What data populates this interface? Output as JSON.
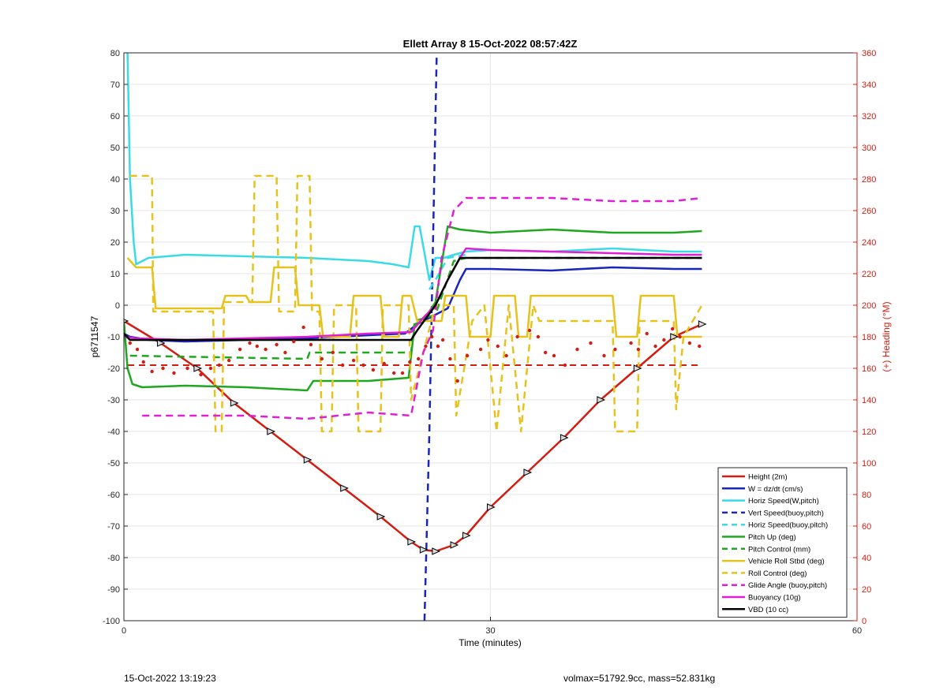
{
  "chart_data": {
    "type": "line",
    "title": "Ellett Array 8 15-Oct-2022 08:57:42Z",
    "xlabel": "Time (minutes)",
    "ylabel": "p6711547",
    "y2label": "(+) Heading (°M)",
    "xlim": [
      0,
      60
    ],
    "ylim": [
      -100,
      80
    ],
    "y2lim": [
      0,
      360
    ],
    "xticks": [
      0,
      30,
      60
    ],
    "yticks": [
      -100,
      -90,
      -80,
      -70,
      -60,
      -50,
      -40,
      -30,
      -20,
      -10,
      0,
      10,
      20,
      30,
      40,
      50,
      60,
      70,
      80
    ],
    "y2ticks": [
      0,
      20,
      40,
      60,
      80,
      100,
      120,
      140,
      160,
      180,
      200,
      220,
      240,
      260,
      280,
      300,
      320,
      340,
      360
    ],
    "grid": true,
    "legend_position": "bottom-right",
    "series": [
      {
        "name": "Height (2m)",
        "color": "#d41c10",
        "style": "solid",
        "marker": "triangle",
        "x": [
          0,
          3,
          6,
          9,
          12,
          15,
          18,
          21,
          23.5,
          24.5,
          25.5,
          27,
          28,
          30,
          33,
          36,
          39,
          42,
          45,
          47.3
        ],
        "y": [
          -5,
          -12,
          -20,
          -31,
          -40,
          -49,
          -58,
          -67,
          -75,
          -77.5,
          -78,
          -76,
          -73,
          -64,
          -53,
          -42,
          -30,
          -20,
          -10,
          -6
        ]
      },
      {
        "name": "W = dz/dt (cm/s)",
        "color": "#1a26b8",
        "style": "solid",
        "x": [
          0,
          0.5,
          2,
          5,
          10,
          15,
          20,
          23,
          24,
          24.5,
          25.5,
          26.5,
          27.5,
          28,
          30,
          35,
          40,
          45,
          47.3
        ],
        "y": [
          -9,
          -10,
          -11,
          -11.5,
          -11,
          -10.5,
          -9.5,
          -9,
          -6,
          -5,
          -3,
          -1,
          8,
          11.5,
          11.5,
          11,
          12,
          11.5,
          11.5
        ]
      },
      {
        "name": "Horiz Speed(W,pitch)",
        "color": "#38dbe6",
        "style": "solid",
        "x": [
          0.3,
          0.5,
          0.8,
          1,
          2,
          5,
          10,
          15,
          20,
          22,
          23.3,
          23.8,
          24.2,
          25,
          25.5,
          26.2,
          27,
          28,
          30,
          35,
          40,
          45,
          47.3
        ],
        "y": [
          80,
          40,
          20,
          13,
          15,
          16,
          15.5,
          15,
          14,
          13,
          12,
          25,
          25,
          8,
          15,
          15,
          16,
          17,
          17.5,
          17,
          18,
          17,
          17
        ]
      },
      {
        "name": "Vert Speed(buoy,pitch)",
        "color": "#1a26b8",
        "style": "dashed",
        "x": [
          24.6,
          25.0,
          25.3,
          25.6
        ],
        "y": [
          -100,
          -40,
          20,
          80
        ]
      },
      {
        "name": "Horiz Speed(buoy,pitch)",
        "color": "#38dbe6",
        "style": "dashed",
        "x": [
          25.0,
          25.5,
          26.5,
          28
        ],
        "y": [
          5,
          8,
          15,
          16
        ]
      },
      {
        "name": "Pitch Up (deg)",
        "color": "#1fa81f",
        "style": "solid",
        "x": [
          0,
          0.3,
          0.7,
          1.5,
          5,
          10,
          15,
          15.5,
          20,
          23.3,
          23.8,
          24.5,
          25.5,
          26.5,
          27.5,
          30,
          35,
          40,
          45,
          47.3
        ],
        "y": [
          -5,
          -20,
          -25,
          -26,
          -25.5,
          -26,
          -27,
          -24,
          -24,
          -23,
          -6,
          -5,
          1,
          25,
          24,
          23,
          24,
          23,
          23,
          23.5
        ]
      },
      {
        "name": "Pitch Control (mm)",
        "color": "#1fa81f",
        "style": "dashed",
        "x": [
          0.5,
          15,
          15.2,
          23.5,
          23.8,
          25.5,
          27,
          28,
          30,
          47.3
        ],
        "y": [
          -16,
          -17,
          -15,
          -15,
          -5,
          -3,
          14,
          15,
          15,
          15
        ]
      },
      {
        "name": "Vehicle Roll Stbd (deg)",
        "color": "#e6c21c",
        "style": "solid",
        "x": [
          0.3,
          1,
          2.3,
          2.6,
          5,
          5.3,
          8,
          8.3,
          10,
          10.3,
          12,
          12.3,
          14,
          14.3,
          16,
          16.3,
          18.5,
          18.8,
          21,
          21.3,
          22.5,
          22.8,
          23.5,
          24,
          26,
          26.3,
          28,
          28.3,
          30,
          30.3,
          32,
          32.3,
          33,
          33.3,
          40,
          40.3,
          42,
          42.3,
          45,
          45.3,
          47.3
        ],
        "y": [
          15,
          12,
          12,
          -1,
          -1,
          -1,
          -1,
          3,
          3,
          1,
          1,
          12,
          12,
          0,
          0,
          -10,
          -10,
          3,
          3,
          -10,
          -10,
          3,
          3,
          -5,
          -5,
          3,
          3,
          -10,
          -10,
          3,
          3,
          -10,
          -10,
          3,
          3,
          -10,
          -10,
          3,
          3,
          -10,
          -10
        ]
      },
      {
        "name": "Roll Control (deg)",
        "color": "#e6c21c",
        "style": "dashed",
        "x": [
          0.5,
          2.3,
          2.4,
          5,
          5.1,
          7.3,
          7.5,
          8,
          8.2,
          10.5,
          10.7,
          12.5,
          12.7,
          14,
          14.2,
          15.2,
          15.4,
          16,
          16.2,
          17,
          17.2,
          19,
          19.2,
          21,
          21.2,
          23.3,
          23.5,
          25.5,
          27,
          27.2,
          28.5,
          29.5,
          30.5,
          31.5,
          32.5,
          33.5,
          34,
          40,
          40.2,
          42,
          42.2,
          45,
          45.2,
          45.8,
          47.3
        ],
        "y": [
          41,
          41,
          -2,
          -2,
          -2,
          -2,
          -40,
          -40,
          1,
          1,
          41,
          41,
          -2,
          -2,
          41,
          41,
          -2,
          -2,
          -40,
          -40,
          0,
          0,
          -40,
          -40,
          0,
          0,
          -30,
          0,
          0,
          -35,
          -5,
          0,
          -40,
          0,
          -40,
          0,
          -5,
          -5,
          -40,
          -40,
          -5,
          -5,
          -33,
          -10,
          0
        ]
      },
      {
        "name": "Glide Angle (buoy,pitch)",
        "color": "#e01fd4",
        "style": "dashed",
        "x": [
          1.5,
          5,
          10,
          15,
          20,
          23.5,
          24.5,
          25.3,
          26,
          27,
          28,
          30,
          35,
          40,
          45,
          47.3
        ],
        "y": [
          -35,
          -35,
          -35,
          -36,
          -34,
          -35,
          -15,
          -8,
          15,
          30,
          34,
          34,
          34,
          33,
          33,
          34
        ]
      },
      {
        "name": "Buoyancy (10g)",
        "color": "#e01fd4",
        "style": "solid",
        "x": [
          0,
          1,
          5,
          10,
          15,
          20,
          23.5,
          24.5,
          25.5,
          26.5,
          27.5,
          28,
          30,
          35,
          40,
          45,
          47.3
        ],
        "y": [
          -10,
          -10.5,
          -11,
          -10.5,
          -10,
          -9,
          -8.5,
          -4,
          0,
          8,
          15,
          18,
          17.5,
          17,
          16.5,
          16,
          16
        ]
      },
      {
        "name": "VBD (10 cc)",
        "color": "#000000",
        "style": "solid",
        "x": [
          0,
          0.5,
          5,
          10,
          15,
          20,
          23.5,
          24,
          25.5,
          26.5,
          27.5,
          28,
          30,
          35,
          40,
          45,
          47.3
        ],
        "y": [
          -9,
          -11,
          -11,
          -11,
          -11,
          -11,
          -11,
          -8,
          0,
          8,
          15,
          15,
          15,
          15,
          15,
          15,
          15
        ]
      }
    ],
    "heading_points": {
      "axis": "right",
      "color": "#d41c10",
      "x": [
        0.5,
        1.1,
        1.6,
        2.3,
        3.2,
        4.1,
        5.2,
        6.3,
        7.1,
        7.8,
        8.6,
        9.5,
        10.3,
        10.9,
        11.6,
        12.5,
        13.2,
        13.9,
        14.7,
        15.3,
        16.2,
        17.1,
        17.9,
        18.8,
        19.6,
        20.4,
        21.3,
        22.1,
        22.8,
        23.4,
        24.1,
        24.7,
        25.2,
        25.7,
        26.1,
        26.7,
        27.3,
        28.1,
        29.2,
        29.8,
        30.6,
        31.3,
        32.2,
        33.2,
        33.9,
        34.5,
        35.2,
        36.1,
        37.1,
        38.2,
        39.3,
        40.2,
        41.5,
        42.1,
        42.8,
        43.5,
        44.2,
        44.9,
        45.5,
        46.3,
        47.1
      ],
      "y": [
        176,
        172,
        164,
        158,
        160,
        157,
        160,
        156,
        160,
        162,
        165,
        172,
        176,
        174,
        172,
        175,
        170,
        177,
        186,
        175,
        166,
        170,
        162,
        165,
        162,
        159,
        163,
        157,
        157,
        164,
        166,
        174,
        180,
        174,
        178,
        166,
        152,
        168,
        172,
        178,
        174,
        168,
        180,
        184,
        180,
        170,
        168,
        162,
        172,
        176,
        168,
        172,
        176,
        172,
        182,
        174,
        178,
        185,
        180,
        176,
        174
      ]
    },
    "heading_reference": {
      "axis": "right",
      "color": "#d41c10",
      "style": "dashed",
      "value": 162
    },
    "annotations": {
      "date_stamp": "15-Oct-2022 13:19:23",
      "summary": "volmax=51792.9cc, mass=52.831kg"
    }
  }
}
